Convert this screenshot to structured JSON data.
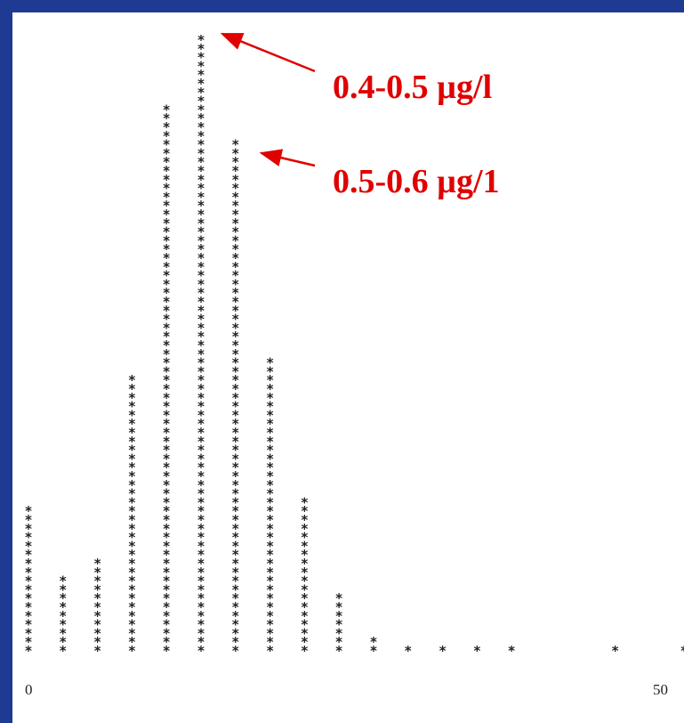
{
  "chart_data": {
    "type": "dot-histogram",
    "marker": "*",
    "marker_color": "#222222",
    "x_ticks": [
      {
        "value": 0,
        "label": "0"
      },
      {
        "value": 50,
        "label": "50"
      }
    ],
    "xlim": [
      0,
      50
    ],
    "bins": [
      {
        "index": 0,
        "count": 17
      },
      {
        "index": 1,
        "count": 9
      },
      {
        "index": 2,
        "count": 11
      },
      {
        "index": 3,
        "count": 32
      },
      {
        "index": 4,
        "count": 63
      },
      {
        "index": 5,
        "count": 71
      },
      {
        "index": 6,
        "count": 59
      },
      {
        "index": 7,
        "count": 34
      },
      {
        "index": 8,
        "count": 18
      },
      {
        "index": 9,
        "count": 7
      },
      {
        "index": 10,
        "count": 2
      },
      {
        "index": 11,
        "count": 1
      },
      {
        "index": 12,
        "count": 1
      },
      {
        "index": 13,
        "count": 1
      },
      {
        "index": 14,
        "count": 1
      },
      {
        "index": 17,
        "count": 1
      },
      {
        "index": 19,
        "count": 1
      }
    ],
    "annotations": [
      {
        "text": "0.4-0.5 µg/l",
        "bin_index": 5,
        "color": "#e00000"
      },
      {
        "text": "0.5-0.6 µg/1",
        "bin_index": 6,
        "color": "#e00000"
      }
    ]
  }
}
